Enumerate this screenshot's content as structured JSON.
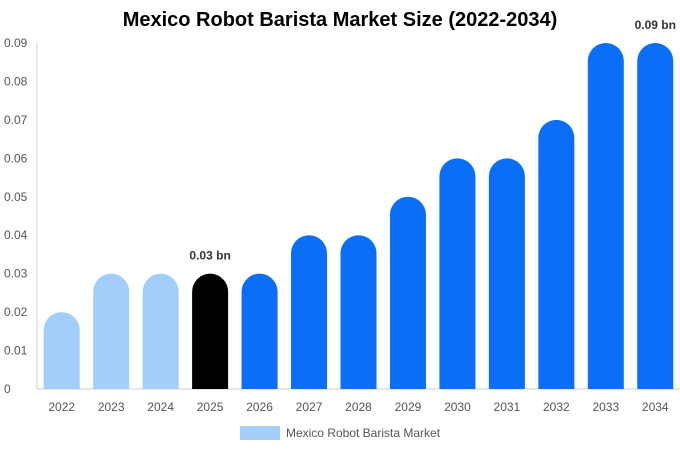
{
  "chart_data": {
    "type": "bar",
    "title": "Mexico Robot Barista Market Size (2022-2034)",
    "xlabel": "",
    "ylabel": "",
    "categories": [
      "2022",
      "2023",
      "2024",
      "2025",
      "2026",
      "2027",
      "2028",
      "2029",
      "2030",
      "2031",
      "2032",
      "2033",
      "2034"
    ],
    "series": [
      {
        "name": "Mexico Robot Barista Market",
        "values": [
          0.02,
          0.03,
          0.03,
          0.03,
          0.03,
          0.04,
          0.04,
          0.05,
          0.06,
          0.06,
          0.07,
          0.09,
          0.09
        ]
      }
    ],
    "ylim": [
      0,
      0.09
    ],
    "yticks": [
      "0",
      "0.01",
      "0.02",
      "0.03",
      "0.04",
      "0.05",
      "0.06",
      "0.07",
      "0.08",
      "0.09"
    ],
    "data_labels": [
      {
        "category": "2025",
        "text": "0.03 bn"
      },
      {
        "category": "2034",
        "text": "0.09 bn"
      }
    ],
    "bar_colors": {
      "historical": "#a3cdfb",
      "current": "#000000",
      "forecast": "#0a6ef6"
    },
    "historical_categories": [
      "2022",
      "2023",
      "2024"
    ],
    "current_category": "2025",
    "legend": {
      "position": "bottom-center",
      "swatch_color": "#a3cdfb"
    },
    "grid": false
  }
}
